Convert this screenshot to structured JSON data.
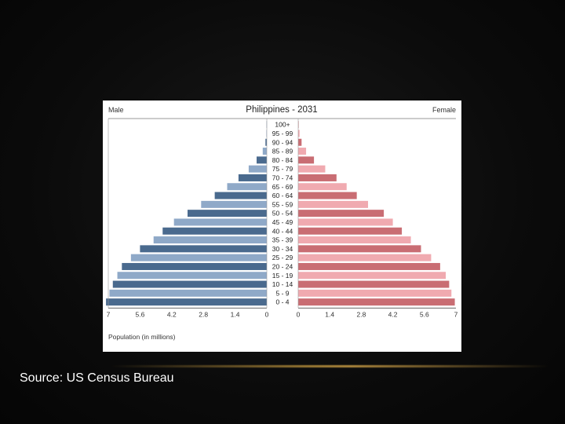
{
  "caption": "Source: US Census Bureau",
  "colors": {
    "male_dark": "#4a6a8e",
    "male_light": "#8fa9c8",
    "female_dark": "#c96d73",
    "female_light": "#f0aab0"
  },
  "chart_data": {
    "type": "bar",
    "title": "Philippines - 2031",
    "left_label": "Male",
    "right_label": "Female",
    "xlabel": "Population (in millions)",
    "xlim": [
      0,
      7
    ],
    "x_ticks_left": [
      "7",
      "5.6",
      "4.2",
      "2.8",
      "1.4",
      "0"
    ],
    "x_ticks_right": [
      "0",
      "1.4",
      "2.8",
      "4.2",
      "5.6",
      "7"
    ],
    "categories": [
      "100+",
      "95 - 99",
      "90 - 94",
      "85 - 89",
      "80 - 84",
      "75 - 79",
      "70 - 74",
      "65 - 69",
      "60 - 64",
      "55 - 59",
      "50 - 54",
      "45 - 49",
      "40 - 44",
      "35 - 39",
      "30 - 34",
      "25 - 29",
      "20 - 24",
      "15 - 19",
      "10 - 14",
      "5 - 9",
      "0 - 4"
    ],
    "series": [
      {
        "name": "Male",
        "values": [
          0.01,
          0.02,
          0.06,
          0.18,
          0.45,
          0.8,
          1.25,
          1.75,
          2.3,
          2.9,
          3.5,
          4.1,
          4.6,
          5.0,
          5.6,
          6.0,
          6.4,
          6.6,
          6.8,
          6.95,
          7.1
        ]
      },
      {
        "name": "Female",
        "values": [
          0.02,
          0.06,
          0.15,
          0.35,
          0.7,
          1.2,
          1.7,
          2.15,
          2.6,
          3.1,
          3.8,
          4.2,
          4.6,
          5.0,
          5.45,
          5.9,
          6.3,
          6.55,
          6.7,
          6.8,
          6.95
        ]
      }
    ]
  }
}
